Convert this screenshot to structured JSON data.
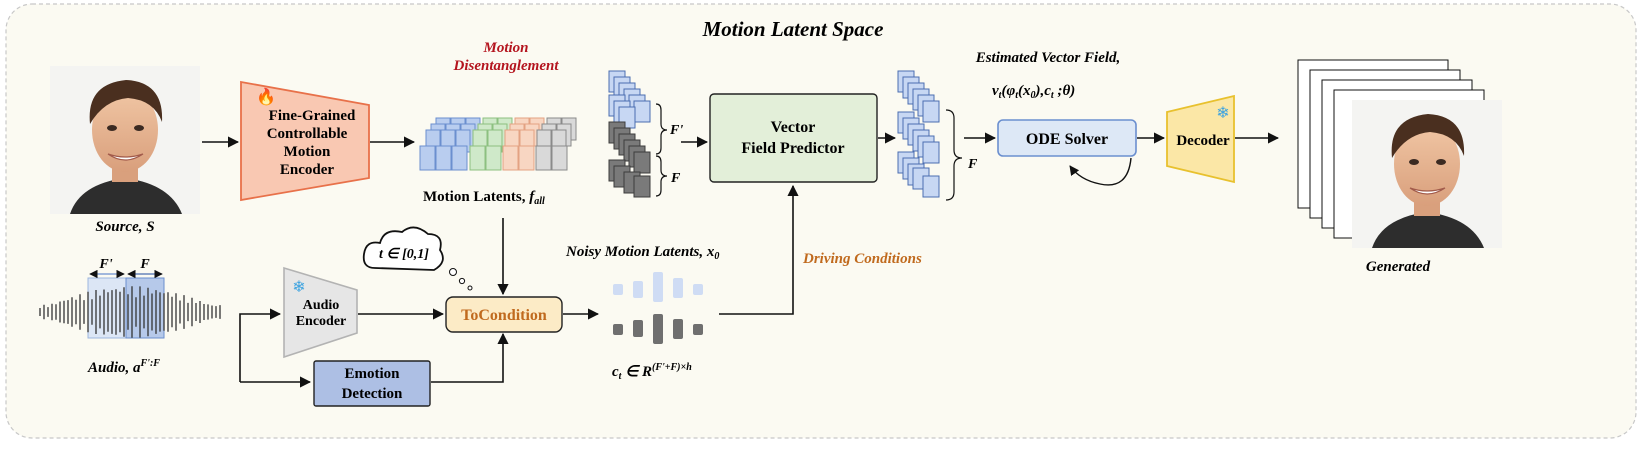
{
  "title": "Motion Latent Space",
  "source": {
    "label": "Source, S"
  },
  "encoder": {
    "lines": [
      "Fine-Grained",
      "Controllable",
      "Motion",
      "Encoder"
    ]
  },
  "disentangle": {
    "lines": [
      "Motion",
      "Disentanglement"
    ]
  },
  "motion_latents": {
    "label": "Motion Latents, ",
    "symbol": "f",
    "sub": "all"
  },
  "stack_labels": {
    "f_prime": "F'",
    "f": "F"
  },
  "vfp": {
    "lines": [
      "Vector",
      "Field Predictor"
    ]
  },
  "output_stack": {
    "label": "F"
  },
  "estimated": {
    "title": "Estimated Vector Field,",
    "v": "v",
    "sub_t": "t",
    "phi": "(φ",
    "sub_t2": "t",
    "x0": "(x",
    "sub_0": "0",
    "rest": "),c",
    "sub_t3": "t",
    "theta": " ;θ)"
  },
  "ode": {
    "label": "ODE Solver"
  },
  "decoder": {
    "label": "Decoder"
  },
  "generated": {
    "label": "Generated"
  },
  "cloud": {
    "label": "t ∈ [0,1]"
  },
  "audio": {
    "label": "Audio, ",
    "a": "a",
    "sup": "F':F",
    "f_prime": "F'",
    "f": "F"
  },
  "audio_encoder": {
    "lines": [
      "Audio",
      "Encoder"
    ]
  },
  "emotion": {
    "lines": [
      "Emotion",
      "Detection"
    ]
  },
  "tocondition": {
    "label": "ToCondition"
  },
  "noisy": {
    "label": "Noisy Motion Latents, ",
    "x": "x",
    "sub": "0"
  },
  "ct": {
    "c": "c",
    "sub": "t",
    "in": " ∈ R",
    "sup": "(F'+F)×h"
  },
  "driving": {
    "label": "Driving Conditions"
  },
  "colors": {
    "encoder": "#f9c8b2",
    "vfp": "#e3efd9",
    "ode": "#dde8f6",
    "decoder": "#fbe7a6",
    "emotion": "#adbfe4",
    "tocondition": "#fcebc6",
    "red_text": "#b4141e",
    "orange_text": "#c06a1e"
  }
}
